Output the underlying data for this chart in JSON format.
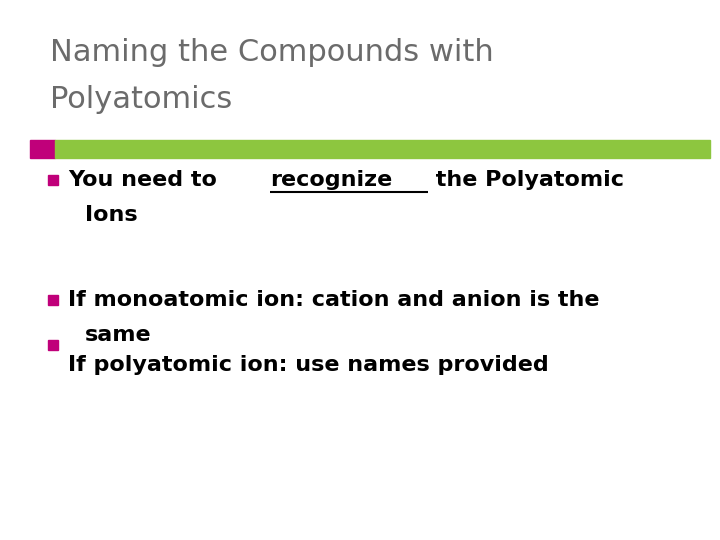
{
  "title_line1": "Naming the Compounds with",
  "title_line2": "Polyatomics",
  "title_color": "#6b6b6b",
  "title_fontsize": 22,
  "bar_pink_color": "#C0007A",
  "bar_green_color": "#8DC63F",
  "bullet_color": "#C0007A",
  "text_color": "#000000",
  "text_fontsize": 16,
  "background_color": "#ffffff",
  "line1_before": "You need to ",
  "line1_underlined": "recognize",
  "line1_after": " the Polyatomic",
  "line2_text": "Ions",
  "line3_text": "If monoatomic ion: cation and anion is the",
  "line4_text": "same",
  "line5_text": "If polyatomic ion: use names provided"
}
